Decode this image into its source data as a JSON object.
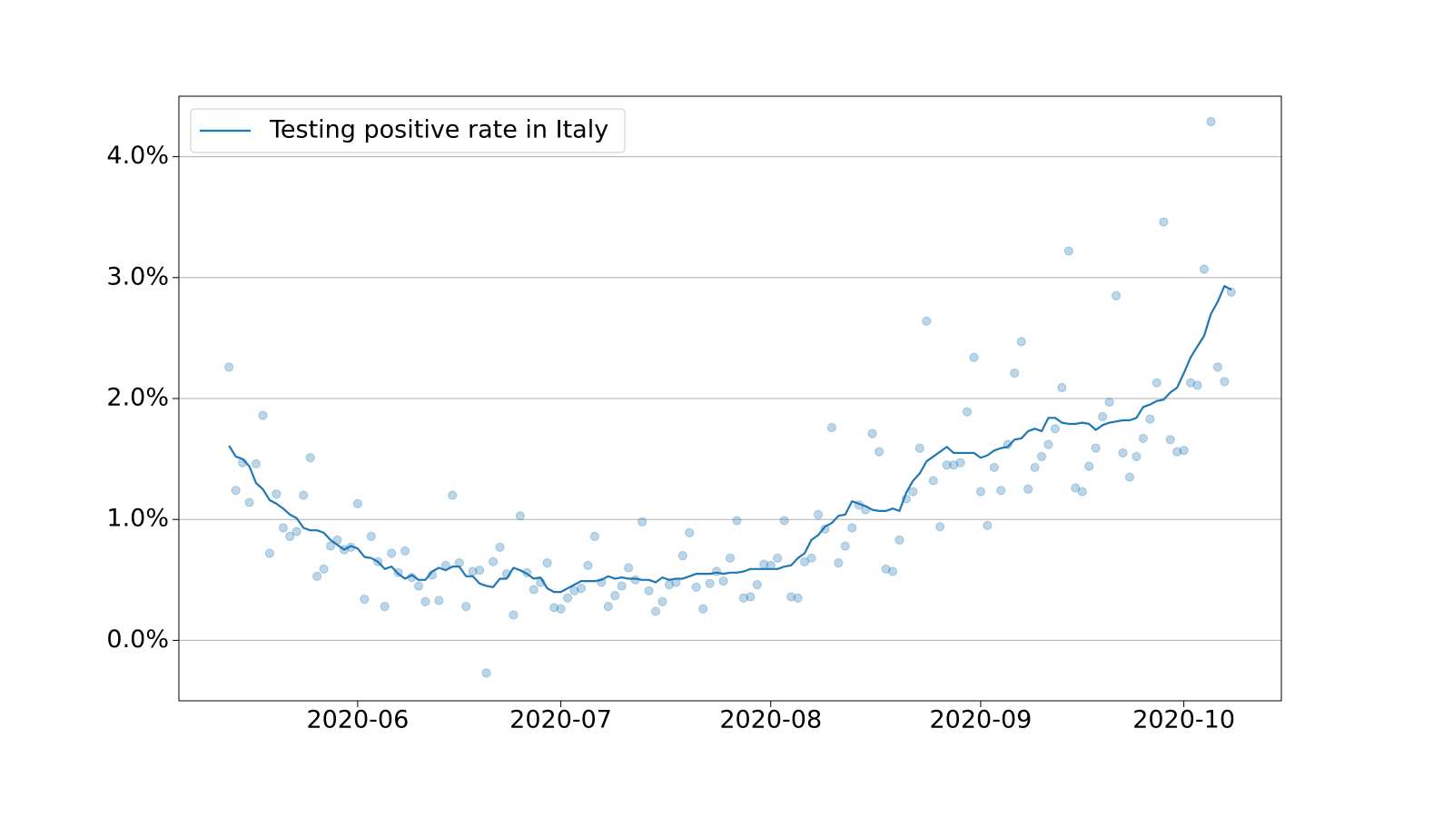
{
  "chart_data": {
    "type": "line",
    "x": [
      134,
      135,
      136,
      137,
      138,
      139,
      140,
      141,
      142,
      143,
      144,
      145,
      146,
      147,
      148,
      149,
      150,
      151,
      152,
      153,
      154,
      155,
      156,
      157,
      158,
      159,
      160,
      161,
      162,
      163,
      164,
      165,
      166,
      167,
      168,
      169,
      170,
      171,
      172,
      173,
      174,
      175,
      176,
      177,
      178,
      179,
      180,
      181,
      182,
      183,
      184,
      185,
      186,
      187,
      188,
      189,
      190,
      191,
      192,
      193,
      194,
      195,
      196,
      197,
      198,
      199,
      200,
      201,
      202,
      203,
      204,
      205,
      206,
      207,
      208,
      209,
      210,
      211,
      212,
      213,
      214,
      215,
      216,
      217,
      218,
      219,
      220,
      221,
      222,
      223,
      224,
      225,
      226,
      227,
      228,
      229,
      230,
      231,
      232,
      233,
      234,
      235,
      236,
      237,
      238,
      239,
      240,
      241,
      242,
      243,
      244,
      245,
      246,
      247,
      248,
      249,
      250,
      251,
      252,
      253,
      254,
      255,
      256,
      257,
      258,
      259,
      260,
      261,
      262,
      263,
      264,
      265,
      266,
      267,
      268,
      269,
      270,
      271,
      272,
      273,
      274,
      275,
      276,
      277,
      278,
      279,
      280,
      281,
      282
    ],
    "series": [
      {
        "name": "Testing positive rate in Italy",
        "color": "#1f77b4",
        "values": [
          1.61,
          1.52,
          1.5,
          1.44,
          1.3,
          1.25,
          1.16,
          1.13,
          1.09,
          1.04,
          1.01,
          0.93,
          0.91,
          0.91,
          0.89,
          0.83,
          0.79,
          0.75,
          0.78,
          0.76,
          0.69,
          0.68,
          0.65,
          0.59,
          0.61,
          0.55,
          0.51,
          0.54,
          0.5,
          0.5,
          0.57,
          0.6,
          0.58,
          0.61,
          0.61,
          0.53,
          0.53,
          0.47,
          0.45,
          0.44,
          0.51,
          0.51,
          0.6,
          0.58,
          0.55,
          0.51,
          0.52,
          0.43,
          0.4,
          0.4,
          0.43,
          0.46,
          0.49,
          0.49,
          0.49,
          0.5,
          0.53,
          0.51,
          0.52,
          0.51,
          0.51,
          0.5,
          0.5,
          0.48,
          0.52,
          0.5,
          0.51,
          0.51,
          0.53,
          0.55,
          0.55,
          0.55,
          0.56,
          0.55,
          0.56,
          0.56,
          0.57,
          0.59,
          0.59,
          0.59,
          0.59,
          0.59,
          0.61,
          0.62,
          0.68,
          0.72,
          0.83,
          0.87,
          0.94,
          0.97,
          1.03,
          1.04,
          1.15,
          1.13,
          1.11,
          1.08,
          1.07,
          1.07,
          1.09,
          1.07,
          1.22,
          1.32,
          1.38,
          1.48,
          1.52,
          1.56,
          1.6,
          1.55,
          1.55,
          1.55,
          1.55,
          1.51,
          1.53,
          1.57,
          1.59,
          1.6,
          1.66,
          1.67,
          1.73,
          1.75,
          1.73,
          1.84,
          1.84,
          1.8,
          1.79,
          1.79,
          1.8,
          1.79,
          1.74,
          1.78,
          1.8,
          1.81,
          1.82,
          1.82,
          1.84,
          1.93,
          1.95,
          1.98,
          1.99,
          2.05,
          2.09,
          2.21,
          2.34,
          2.43,
          2.52,
          2.7,
          2.8,
          2.93,
          2.9
        ]
      },
      {
        "type": "scatter",
        "color": "#1f77b4",
        "values": [
          2.26,
          1.24,
          1.47,
          1.14,
          1.46,
          1.86,
          0.72,
          1.21,
          0.93,
          0.86,
          0.9,
          1.2,
          1.51,
          0.53,
          0.59,
          0.78,
          0.83,
          0.75,
          0.77,
          1.13,
          0.34,
          0.86,
          0.65,
          0.28,
          0.72,
          0.56,
          0.74,
          0.52,
          0.45,
          0.32,
          0.54,
          0.33,
          0.62,
          1.2,
          0.64,
          0.28,
          0.57,
          0.58,
          -0.27,
          0.65,
          0.77,
          0.55,
          0.21,
          1.03,
          0.56,
          0.42,
          0.48,
          0.64,
          0.27,
          0.26,
          0.35,
          0.41,
          0.43,
          0.62,
          0.86,
          0.48,
          0.28,
          0.37,
          0.45,
          0.6,
          0.5,
          0.98,
          0.41,
          0.24,
          0.32,
          0.46,
          0.48,
          0.7,
          0.89,
          0.44,
          0.26,
          0.47,
          0.57,
          0.49,
          0.68,
          0.99,
          0.35,
          0.36,
          0.46,
          0.63,
          0.62,
          0.68,
          0.99,
          0.36,
          0.35,
          0.65,
          0.68,
          1.04,
          0.92,
          1.76,
          0.64,
          0.78,
          0.93,
          1.12,
          1.08,
          1.71,
          1.56,
          0.59,
          0.57,
          0.83,
          1.17,
          1.23,
          1.59,
          2.64,
          1.32,
          0.94,
          1.45,
          1.45,
          1.47,
          1.89,
          2.34,
          1.23,
          0.95,
          1.43,
          1.24,
          1.62,
          2.21,
          2.47,
          1.25,
          1.43,
          1.52,
          1.62,
          1.75,
          2.09,
          3.22,
          1.26,
          1.23,
          1.44,
          1.59,
          1.85,
          1.97,
          2.85,
          1.55,
          1.35,
          1.52,
          1.67,
          1.83,
          2.13,
          3.46,
          1.66,
          1.56,
          1.57,
          2.13,
          2.11,
          3.07,
          4.29,
          2.26,
          2.14,
          2.88
        ]
      }
    ],
    "xlim": [
      126.6,
      289.4
    ],
    "xticks": [
      {
        "value": 153,
        "label": "2020-06"
      },
      {
        "value": 183,
        "label": "2020-07"
      },
      {
        "value": 214,
        "label": "2020-08"
      },
      {
        "value": 245,
        "label": "2020-09"
      },
      {
        "value": 275,
        "label": "2020-10"
      }
    ],
    "ylim": [
      -0.5,
      4.5
    ],
    "yticks": [
      {
        "value": 0,
        "label": "0.0%"
      },
      {
        "value": 1,
        "label": "1.0%"
      },
      {
        "value": 2,
        "label": "2.0%"
      },
      {
        "value": 3,
        "label": "3.0%"
      },
      {
        "value": 4,
        "label": "4.0%"
      }
    ],
    "grid": true,
    "legend": "upper left"
  }
}
